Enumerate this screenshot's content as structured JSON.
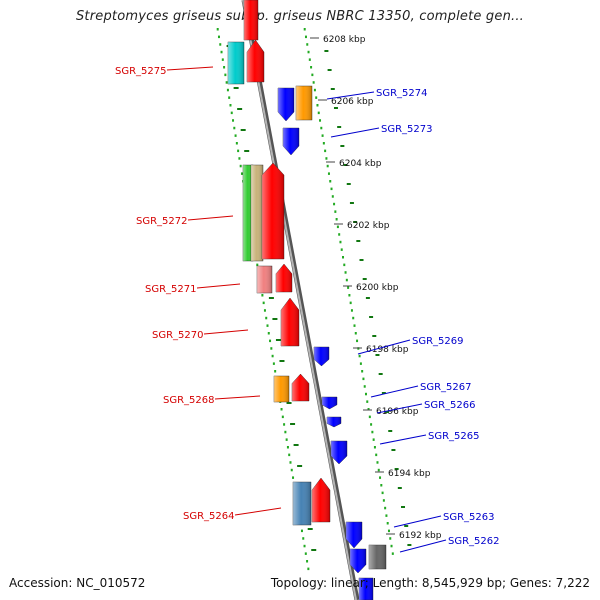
{
  "title": "Streptomyces griseus subsp. griseus NBRC 13350, complete gen...",
  "footer": {
    "accession": "Accession: NC_010572",
    "topology": "Topology: linear; Length: 8,545,929 bp; Genes: 7,222"
  },
  "colors": {
    "backbone": "#888888",
    "tick_dots": "#22aa22",
    "tick_marks": "#117711",
    "forward_label": "#d40000",
    "reverse_label": "#0000cc"
  },
  "scale_labels": [
    "6208 kbp",
    "6206 kbp",
    "6204 kbp",
    "6202 kbp",
    "6200 kbp",
    "6198 kbp",
    "6196 kbp",
    "6194 kbp",
    "6192 kbp"
  ],
  "forward_genes": [
    {
      "label": "SGR_5275",
      "color": "#ff0000"
    },
    {
      "label": "SGR_5272",
      "color": "#ff0000"
    },
    {
      "label": "SGR_5271",
      "color": "#ff0000"
    },
    {
      "label": "SGR_5270",
      "color": "#ff0000"
    },
    {
      "label": "SGR_5268",
      "color": "#ff0000"
    },
    {
      "label": "SGR_5264",
      "color": "#ff0000"
    }
  ],
  "reverse_genes": [
    {
      "label": "SGR_5274",
      "color": "#0000ff"
    },
    {
      "label": "SGR_5273",
      "color": "#0000ff"
    },
    {
      "label": "SGR_5269",
      "color": "#0000ff"
    },
    {
      "label": "SGR_5267",
      "color": "#0000ff"
    },
    {
      "label": "SGR_5266",
      "color": "#0000ff"
    },
    {
      "label": "SGR_5265",
      "color": "#0000ff"
    },
    {
      "label": "SGR_5263",
      "color": "#0000ff"
    },
    {
      "label": "SGR_5262",
      "color": "#0000ff"
    }
  ],
  "category_colors": {
    "red": "#ff0000",
    "blue": "#0000ff",
    "cyan": "#00cccc",
    "orange": "#ff9900",
    "green": "#33cc33",
    "khaki": "#c8b27a",
    "pink": "#f08080",
    "steelblue": "#4682b4",
    "gray": "#666666"
  }
}
